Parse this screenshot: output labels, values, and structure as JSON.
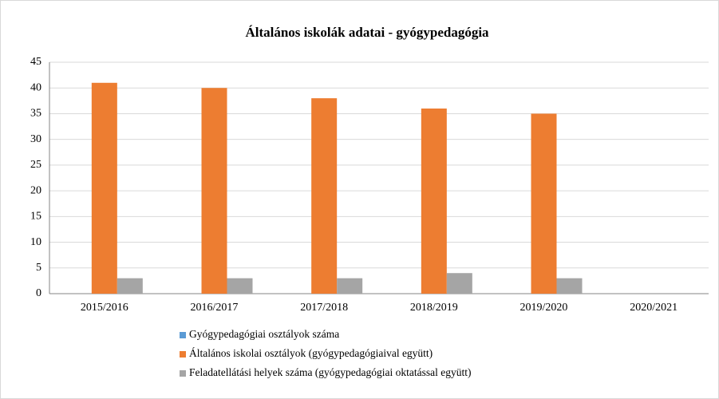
{
  "chart_data": {
    "type": "bar",
    "title": "Általános iskolák adatai - gyógypedagógia",
    "categories": [
      "2015/2016",
      "2016/2017",
      "2017/2018",
      "2018/2019",
      "2019/2020",
      "2020/2021"
    ],
    "series": [
      {
        "name": "Gyógypedagógiai osztályok száma",
        "color": "#5b9bd5",
        "values": [
          0,
          0,
          0,
          0,
          0,
          null
        ]
      },
      {
        "name": "Általános iskolai osztályok (gyógypedagógiaival együtt)",
        "color": "#ed7d31",
        "values": [
          41,
          40,
          38,
          36,
          35,
          null
        ]
      },
      {
        "name": "Feladatellátási helyek száma (gyógypedagógiai oktatással együtt)",
        "color": "#a5a5a5",
        "values": [
          3,
          3,
          3,
          4,
          3,
          null
        ]
      }
    ],
    "ylim": [
      0,
      45
    ],
    "yticks": [
      0,
      5,
      10,
      15,
      20,
      25,
      30,
      35,
      40,
      45
    ],
    "grid": true,
    "legend": "bottom"
  }
}
